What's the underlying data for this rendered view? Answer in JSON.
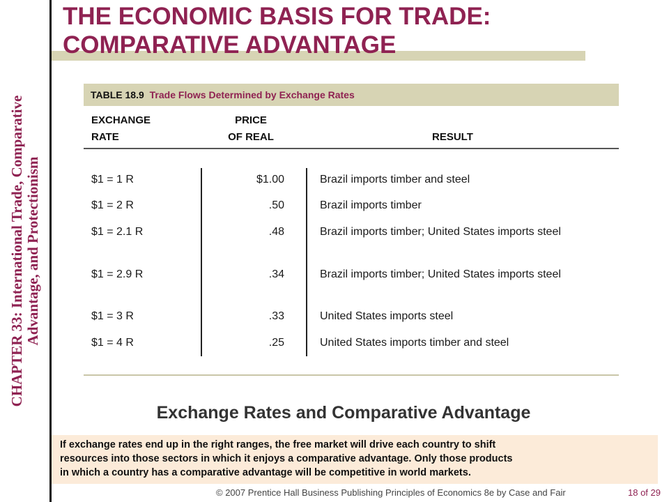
{
  "sidebar": {
    "chapter_lines": [
      "CHAPTER 33:  International Trade, Comparative",
      "Advantage, and Protectionism"
    ]
  },
  "slide": {
    "title_lines": [
      "THE ECONOMIC BASIS FOR TRADE:",
      "COMPARATIVE ADVANTAGE"
    ]
  },
  "table": {
    "number": "TABLE 18.9",
    "caption": "Trade Flows Determined by Exchange Rates",
    "headers": {
      "rate": [
        "EXCHANGE",
        "RATE"
      ],
      "price": [
        "PRICE",
        "OF REAL"
      ],
      "result": [
        "",
        "RESULT"
      ]
    },
    "rows": [
      {
        "rate": "$1 = 1 R",
        "price": "$1.00",
        "result": "Brazil imports timber and steel"
      },
      {
        "rate": "$1 = 2 R",
        "price": ".50",
        "result": "Brazil imports timber"
      },
      {
        "rate": "$1 = 2.1 R",
        "price": ".48",
        "result": "Brazil imports timber; United States imports steel"
      },
      {
        "rate": "$1 = 2.9 R",
        "price": ".34",
        "result": "Brazil imports timber; United States imports steel"
      },
      {
        "rate": "$1 = 3 R",
        "price": ".33",
        "result": "United States imports steel"
      },
      {
        "rate": "$1 = 4 R",
        "price": ".25",
        "result": "United States imports timber and steel"
      }
    ]
  },
  "section": {
    "heading": "Exchange Rates and Comparative Advantage",
    "explanation_lines": [
      "If exchange rates end up in the right ranges, the free market will drive each country to shift",
      "resources into those sectors in which it enjoys a comparative advantage.  Only those products",
      "in which a country has a comparative advantage will be competitive in world markets."
    ]
  },
  "footer": {
    "credit": "© 2007 Prentice Hall Business Publishing   Principles of Economics 8e by Case and Fair",
    "page": "18 of 29"
  },
  "colors": {
    "accent": "#8f2252",
    "band": "#d7d4b4",
    "note_bg": "#fcebd9"
  }
}
